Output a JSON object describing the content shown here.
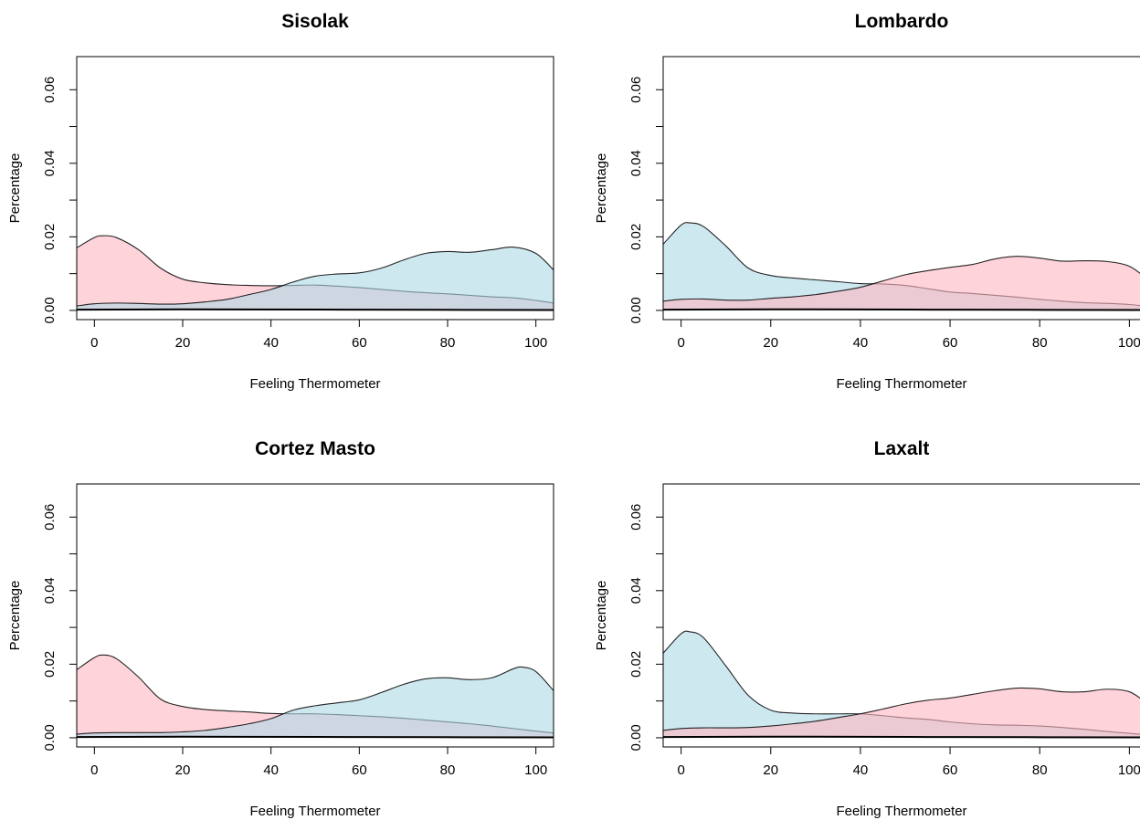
{
  "colors": {
    "pink": "#ffb6c1",
    "blue": "#add8e6",
    "line": "#000000"
  },
  "chart_data": [
    {
      "type": "area",
      "title": "Sisolak",
      "xlabel": "Feeling Thermometer",
      "ylabel": "Percentage",
      "xlim": [
        -4,
        104
      ],
      "ylim": [
        -0.0025,
        0.069
      ],
      "xticks": [
        0,
        20,
        40,
        60,
        80,
        100
      ],
      "xtick_labels": [
        "0",
        "20",
        "40",
        "60",
        "80",
        "100"
      ],
      "yticks": [
        0.0,
        0.01,
        0.02,
        0.03,
        0.04,
        0.05,
        0.06
      ],
      "ytick_labels": [
        "0.00",
        "",
        "0.02",
        "",
        "0.04",
        "",
        "0.06"
      ],
      "grid": false,
      "series": [
        {
          "color": "pink",
          "x": [
            -4,
            0,
            2,
            5,
            10,
            15,
            20,
            25,
            30,
            35,
            40,
            45,
            50,
            55,
            60,
            65,
            70,
            75,
            80,
            85,
            90,
            95,
            100,
            104
          ],
          "y": [
            0.017,
            0.0198,
            0.0203,
            0.0198,
            0.0165,
            0.0115,
            0.0085,
            0.0075,
            0.007,
            0.0068,
            0.0067,
            0.0068,
            0.0069,
            0.0066,
            0.0062,
            0.0057,
            0.0052,
            0.0048,
            0.0045,
            0.0041,
            0.0037,
            0.0034,
            0.0027,
            0.002
          ]
        },
        {
          "color": "blue",
          "x": [
            -4,
            0,
            5,
            10,
            15,
            20,
            25,
            30,
            35,
            40,
            45,
            50,
            55,
            60,
            65,
            70,
            75,
            80,
            85,
            90,
            95,
            100,
            104
          ],
          "y": [
            0.0012,
            0.0018,
            0.002,
            0.0019,
            0.0017,
            0.0018,
            0.0023,
            0.003,
            0.0043,
            0.0057,
            0.0077,
            0.0093,
            0.0099,
            0.0102,
            0.0115,
            0.0137,
            0.0155,
            0.016,
            0.0158,
            0.0165,
            0.0172,
            0.0155,
            0.011
          ]
        },
        {
          "color": "dark",
          "x": [
            -4,
            20,
            60,
            104
          ],
          "y": [
            0.0002,
            0.0003,
            0.0002,
            0.0001
          ]
        }
      ]
    },
    {
      "type": "area",
      "title": "Lombardo",
      "xlabel": "Feeling Thermometer",
      "ylabel": "Percentage",
      "xlim": [
        -4,
        104
      ],
      "ylim": [
        -0.0025,
        0.069
      ],
      "xticks": [
        0,
        20,
        40,
        60,
        80,
        100
      ],
      "xtick_labels": [
        "0",
        "20",
        "40",
        "60",
        "80",
        "100"
      ],
      "yticks": [
        0.0,
        0.01,
        0.02,
        0.03,
        0.04,
        0.05,
        0.06
      ],
      "ytick_labels": [
        "0.00",
        "",
        "0.02",
        "",
        "0.04",
        "",
        "0.06"
      ],
      "grid": false,
      "series": [
        {
          "color": "blue",
          "x": [
            -4,
            0,
            2,
            5,
            10,
            15,
            20,
            25,
            30,
            35,
            40,
            45,
            50,
            55,
            60,
            65,
            70,
            75,
            80,
            85,
            90,
            95,
            100,
            104
          ],
          "y": [
            0.018,
            0.0232,
            0.0238,
            0.0228,
            0.0175,
            0.0115,
            0.0095,
            0.0088,
            0.0083,
            0.0078,
            0.0073,
            0.0072,
            0.0068,
            0.0059,
            0.005,
            0.0046,
            0.0041,
            0.0036,
            0.003,
            0.0025,
            0.0021,
            0.0019,
            0.0016,
            0.0011
          ]
        },
        {
          "color": "pink",
          "x": [
            -4,
            0,
            5,
            10,
            15,
            20,
            25,
            30,
            35,
            40,
            45,
            50,
            55,
            60,
            65,
            70,
            75,
            80,
            85,
            90,
            95,
            100,
            104
          ],
          "y": [
            0.0025,
            0.003,
            0.0031,
            0.0028,
            0.0028,
            0.0033,
            0.0037,
            0.0043,
            0.0052,
            0.0063,
            0.008,
            0.0097,
            0.0108,
            0.0117,
            0.0125,
            0.014,
            0.0147,
            0.0142,
            0.0134,
            0.0135,
            0.0133,
            0.012,
            0.0085
          ]
        },
        {
          "color": "dark",
          "x": [
            -4,
            20,
            60,
            104
          ],
          "y": [
            0.0002,
            0.0003,
            0.0002,
            0.0001
          ]
        }
      ]
    },
    {
      "type": "area",
      "title": "Cortez Masto",
      "xlabel": "Feeling Thermometer",
      "ylabel": "Percentage",
      "xlim": [
        -4,
        104
      ],
      "ylim": [
        -0.0025,
        0.069
      ],
      "xticks": [
        0,
        20,
        40,
        60,
        80,
        100
      ],
      "xtick_labels": [
        "0",
        "20",
        "40",
        "60",
        "80",
        "100"
      ],
      "yticks": [
        0.0,
        0.01,
        0.02,
        0.03,
        0.04,
        0.05,
        0.06
      ],
      "ytick_labels": [
        "0.00",
        "",
        "0.02",
        "",
        "0.04",
        "",
        "0.06"
      ],
      "grid": false,
      "series": [
        {
          "color": "pink",
          "x": [
            -4,
            0,
            2,
            5,
            10,
            15,
            20,
            25,
            30,
            35,
            40,
            45,
            50,
            55,
            60,
            65,
            70,
            75,
            80,
            85,
            90,
            95,
            100,
            104
          ],
          "y": [
            0.0185,
            0.0218,
            0.0225,
            0.0215,
            0.0165,
            0.0105,
            0.0085,
            0.0077,
            0.0073,
            0.007,
            0.0066,
            0.0065,
            0.0065,
            0.0063,
            0.006,
            0.0057,
            0.0053,
            0.0048,
            0.0043,
            0.0038,
            0.0032,
            0.0025,
            0.0018,
            0.0013
          ]
        },
        {
          "color": "blue",
          "x": [
            -4,
            0,
            5,
            10,
            15,
            20,
            25,
            30,
            35,
            40,
            45,
            50,
            55,
            60,
            65,
            70,
            75,
            80,
            85,
            90,
            95,
            97,
            100,
            104
          ],
          "y": [
            0.001,
            0.0013,
            0.0014,
            0.0014,
            0.0014,
            0.0016,
            0.002,
            0.0028,
            0.0038,
            0.0052,
            0.0075,
            0.0087,
            0.0095,
            0.0103,
            0.0123,
            0.0145,
            0.016,
            0.0163,
            0.0158,
            0.0163,
            0.0188,
            0.0192,
            0.018,
            0.0128
          ]
        },
        {
          "color": "dark",
          "x": [
            -4,
            20,
            60,
            104
          ],
          "y": [
            0.0002,
            0.0003,
            0.0002,
            0.0001
          ]
        }
      ]
    },
    {
      "type": "area",
      "title": "Laxalt",
      "xlabel": "Feeling Thermometer",
      "ylabel": "Percentage",
      "xlim": [
        -4,
        104
      ],
      "ylim": [
        -0.0025,
        0.069
      ],
      "xticks": [
        0,
        20,
        40,
        60,
        80,
        100
      ],
      "xtick_labels": [
        "0",
        "20",
        "40",
        "60",
        "80",
        "100"
      ],
      "yticks": [
        0.0,
        0.01,
        0.02,
        0.03,
        0.04,
        0.05,
        0.06
      ],
      "ytick_labels": [
        "0.00",
        "",
        "0.02",
        "",
        "0.04",
        "",
        "0.06"
      ],
      "grid": false,
      "series": [
        {
          "color": "blue",
          "x": [
            -4,
            0,
            2,
            5,
            10,
            15,
            20,
            25,
            30,
            35,
            40,
            45,
            50,
            55,
            60,
            65,
            70,
            75,
            80,
            85,
            90,
            95,
            100,
            104
          ],
          "y": [
            0.023,
            0.0283,
            0.0288,
            0.0272,
            0.0195,
            0.0115,
            0.0075,
            0.0067,
            0.0065,
            0.0065,
            0.0065,
            0.006,
            0.0054,
            0.005,
            0.0043,
            0.0038,
            0.0035,
            0.0034,
            0.0032,
            0.0028,
            0.0023,
            0.0017,
            0.0012,
            0.0008
          ]
        },
        {
          "color": "pink",
          "x": [
            -4,
            0,
            5,
            10,
            15,
            20,
            25,
            30,
            35,
            40,
            45,
            50,
            55,
            60,
            65,
            70,
            75,
            80,
            85,
            90,
            95,
            100,
            104
          ],
          "y": [
            0.002,
            0.0025,
            0.0027,
            0.0027,
            0.0028,
            0.0032,
            0.0038,
            0.0045,
            0.0055,
            0.0065,
            0.0078,
            0.0092,
            0.0102,
            0.0108,
            0.0118,
            0.0128,
            0.0135,
            0.0133,
            0.0125,
            0.0125,
            0.0132,
            0.0125,
            0.0093
          ]
        },
        {
          "color": "dark",
          "x": [
            -4,
            20,
            60,
            104
          ],
          "y": [
            0.0002,
            0.0003,
            0.0002,
            0.0001
          ]
        }
      ]
    }
  ]
}
